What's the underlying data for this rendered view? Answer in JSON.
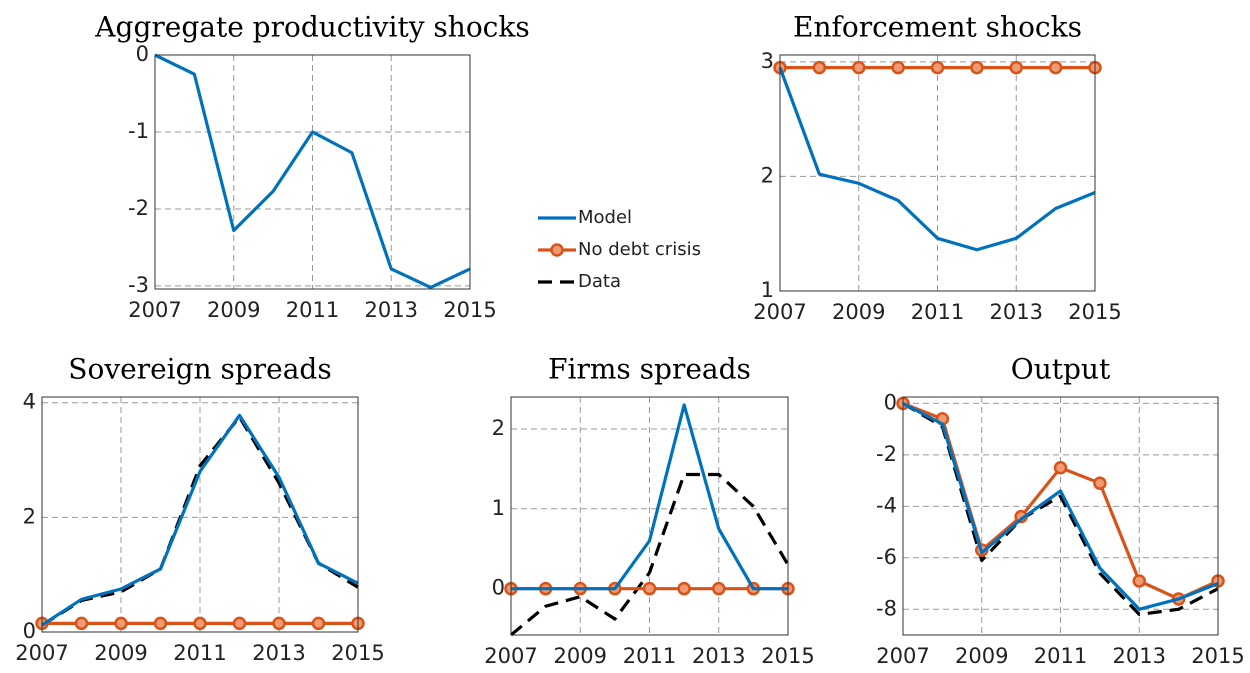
{
  "chart_data": [
    {
      "type": "line",
      "title": "Aggregate productivity shocks",
      "x": [
        2007,
        2008,
        2009,
        2010,
        2011,
        2012,
        2013,
        2014,
        2015
      ],
      "xlim": [
        2007,
        2015
      ],
      "xticks": [
        2007,
        2009,
        2011,
        2013,
        2015
      ],
      "ylim": [
        -3.04,
        0
      ],
      "yticks": [
        -3,
        -2,
        -1,
        0
      ],
      "grid": true,
      "series": [
        {
          "name": "Model",
          "color": "#0072BD",
          "values": [
            0,
            -0.25,
            -2.28,
            -1.77,
            -1.0,
            -1.27,
            -2.78,
            -3.02,
            -2.78
          ]
        }
      ]
    },
    {
      "type": "line",
      "title": "Enforcement shocks",
      "x": [
        2007,
        2008,
        2009,
        2010,
        2011,
        2012,
        2013,
        2014,
        2015
      ],
      "xlim": [
        2007,
        2015
      ],
      "xticks": [
        2007,
        2009,
        2011,
        2013,
        2015
      ],
      "ylim": [
        1,
        3.06
      ],
      "yticks": [
        1,
        2,
        3
      ],
      "grid": true,
      "series": [
        {
          "name": "Model",
          "color": "#0072BD",
          "values": [
            2.95,
            2.02,
            1.94,
            1.79,
            1.46,
            1.36,
            1.46,
            1.72,
            1.86
          ]
        },
        {
          "name": "No debt crisis",
          "color": "#D95319",
          "values": [
            2.95,
            2.95,
            2.95,
            2.95,
            2.95,
            2.95,
            2.95,
            2.95,
            2.95
          ]
        }
      ]
    },
    {
      "type": "line",
      "title": "Sovereign spreads",
      "x": [
        2007,
        2008,
        2009,
        2010,
        2011,
        2012,
        2013,
        2014,
        2015
      ],
      "xlim": [
        2007,
        2015
      ],
      "xticks": [
        2007,
        2009,
        2011,
        2013,
        2015
      ],
      "ylim": [
        0,
        4.1
      ],
      "yticks": [
        0,
        2,
        4
      ],
      "grid": true,
      "series": [
        {
          "name": "Model",
          "color": "#0072BD",
          "values": [
            0.12,
            0.57,
            0.75,
            1.1,
            2.8,
            3.78,
            2.7,
            1.2,
            0.85
          ]
        },
        {
          "name": "No debt crisis",
          "color": "#D95319",
          "values": [
            0.15,
            0.15,
            0.15,
            0.15,
            0.15,
            0.15,
            0.15,
            0.15,
            0.15
          ]
        },
        {
          "name": "Data",
          "color": "#000000",
          "values": [
            0.12,
            0.55,
            0.7,
            1.1,
            2.9,
            3.75,
            2.6,
            1.2,
            0.78
          ]
        }
      ]
    },
    {
      "type": "line",
      "title": "Firms spreads",
      "x": [
        2007,
        2008,
        2009,
        2010,
        2011,
        2012,
        2013,
        2014,
        2015
      ],
      "xlim": [
        2007,
        2015
      ],
      "xticks": [
        2007,
        2009,
        2011,
        2013,
        2015
      ],
      "ylim": [
        -0.58,
        2.4
      ],
      "yticks": [
        0,
        1,
        2
      ],
      "grid": true,
      "series": [
        {
          "name": "Model",
          "color": "#0072BD",
          "values": [
            0,
            0,
            0,
            0,
            0.6,
            2.3,
            0.75,
            0,
            0
          ]
        },
        {
          "name": "No debt crisis",
          "color": "#D95319",
          "values": [
            0,
            0,
            0,
            0,
            0,
            0,
            0,
            0,
            0
          ]
        },
        {
          "name": "Data",
          "color": "#000000",
          "values": [
            -0.58,
            -0.22,
            -0.1,
            -0.38,
            0.2,
            1.43,
            1.43,
            1.03,
            0.3
          ]
        }
      ]
    },
    {
      "type": "line",
      "title": "Output",
      "x": [
        2007,
        2008,
        2009,
        2010,
        2011,
        2012,
        2013,
        2014,
        2015
      ],
      "xlim": [
        2007,
        2015
      ],
      "xticks": [
        2007,
        2009,
        2011,
        2013,
        2015
      ],
      "ylim": [
        -9,
        0.25
      ],
      "yticks": [
        -8,
        -6,
        -4,
        -2,
        0
      ],
      "grid": true,
      "series": [
        {
          "name": "Model",
          "color": "#0072BD",
          "values": [
            0,
            -0.8,
            -5.8,
            -4.5,
            -3.4,
            -6.4,
            -8.0,
            -7.6,
            -7.0
          ]
        },
        {
          "name": "No debt crisis",
          "color": "#D95319",
          "values": [
            0,
            -0.6,
            -5.7,
            -4.4,
            -2.5,
            -3.1,
            -6.9,
            -7.6,
            -6.9
          ]
        },
        {
          "name": "Data",
          "color": "#000000",
          "values": [
            0,
            -0.9,
            -6.1,
            -4.5,
            -3.6,
            -6.6,
            -8.2,
            -8.0,
            -7.2
          ]
        }
      ]
    }
  ]
}
